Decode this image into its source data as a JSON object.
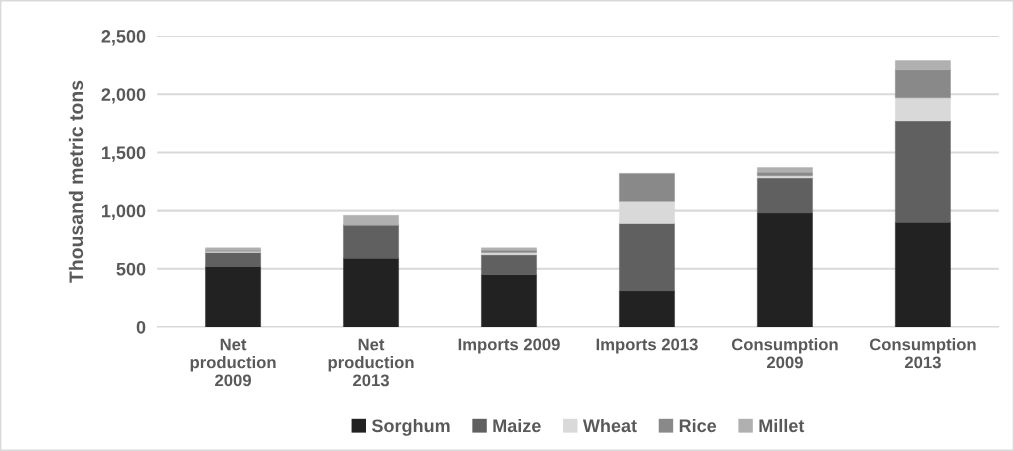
{
  "chart_data": {
    "type": "bar",
    "stacked": true,
    "ylabel": "Thousand metric tons",
    "categories": [
      "Net production 2009",
      "Net production 2013",
      "Imports 2009",
      "Imports 2013",
      "Consumption 2009",
      "Consumption 2013"
    ],
    "series": [
      {
        "name": "Sorghum",
        "color": "#222222",
        "values": [
          520,
          590,
          450,
          310,
          980,
          900
        ]
      },
      {
        "name": "Maize",
        "color": "#606060",
        "values": [
          120,
          280,
          170,
          580,
          300,
          870
        ]
      },
      {
        "name": "Wheat",
        "color": "#d9d9d9",
        "values": [
          10,
          null,
          20,
          190,
          20,
          200
        ]
      },
      {
        "name": "Rice",
        "color": "#898989",
        "values": [
          10,
          10,
          20,
          240,
          30,
          240
        ]
      },
      {
        "name": "Millet",
        "color": "#b0b0b0",
        "values": [
          20,
          80,
          20,
          null,
          40,
          80
        ]
      }
    ],
    "ylim": [
      0,
      2500
    ],
    "yticks": [
      0,
      {
        "value": 500,
        "label": "500"
      },
      {
        "value": 1000,
        "label": "1,000"
      },
      {
        "value": 1500,
        "label": "1,500"
      },
      {
        "value": 2000,
        "label": "2,000"
      },
      {
        "value": 2500,
        "label": "2,500"
      }
    ],
    "grid": "y",
    "legend": "bottom"
  }
}
